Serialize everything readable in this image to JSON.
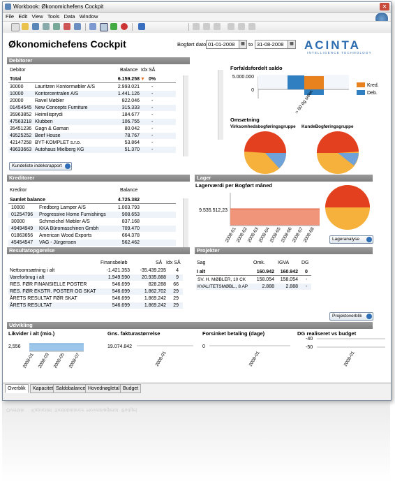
{
  "window": {
    "title": "Workbook: Økonomichefens Cockpit",
    "close_symbol": "✕"
  },
  "menu": [
    "File",
    "Edit",
    "View",
    "Tools",
    "Data",
    "Window"
  ],
  "page": {
    "title": "Økonomichefens Cockpit",
    "date_label": "Bogført dato",
    "date_from": "01-01-2008",
    "date_to_label": "to",
    "date_to": "31-08-2008",
    "brand": "ACINTA",
    "tagline": "INTELLIGENCE TECHNOLOGY",
    "calendar_symbol": "▦"
  },
  "debitorer": {
    "header": "Debitorer",
    "columns": [
      "Debitor",
      "Balance",
      "Idx",
      "SÅ"
    ],
    "total": {
      "label": "Total",
      "balance": "6.159.258",
      "arrow": "▼",
      "sa": "0%"
    },
    "rows": [
      {
        "no": "30000",
        "name": "Lauritzen Kontormøbler A/S",
        "bal": "2.993.021",
        "sa": "-"
      },
      {
        "no": "10000",
        "name": "Kontorcentralen A/S",
        "bal": "1.441.126",
        "sa": "-"
      },
      {
        "no": "20000",
        "name": "Ravel Møbler",
        "bal": "822.046",
        "sa": "-"
      },
      {
        "no": "01454545",
        "name": "New Concepts Furniture",
        "bal": "315.333",
        "sa": "-"
      },
      {
        "no": "35963852",
        "name": "Heimilisprydi",
        "bal": "184.677",
        "sa": "-"
      },
      {
        "no": "47563218",
        "name": "Klubben",
        "bal": "106.755",
        "sa": "-"
      },
      {
        "no": "35451236",
        "name": "Gagn & Gaman",
        "bal": "80.042",
        "sa": "-"
      },
      {
        "no": "49525252",
        "name": "Beef House",
        "bal": "78.767",
        "sa": "-"
      },
      {
        "no": "42147258",
        "name": "BYT-KOMPLET s.r.o.",
        "bal": "53.864",
        "sa": "-"
      },
      {
        "no": "49633663",
        "name": "Autohaus Mielberg KG",
        "bal": "51.370",
        "sa": "-"
      }
    ],
    "button": "Kundeliste indeksrapport"
  },
  "forfald": {
    "title": "Forfaldsfordelt saldo",
    "y_top": "5.000.000",
    "y_zero": "0",
    "x_label": "> 60 dg siden",
    "legend": [
      {
        "label": "Kred.",
        "color": "#e8821e"
      },
      {
        "label": "Deb.",
        "color": "#2f7fc1"
      }
    ]
  },
  "omsaetning": {
    "title": "Omsætning",
    "pie1_label": "Virksomhedsbogføringsgruppe",
    "pie2_label": "KundeBogføringsgruppe"
  },
  "kreditorer": {
    "header": "Kreditorer",
    "columns": [
      "Kreditor",
      "Balance"
    ],
    "total": {
      "label": "Samlet balance",
      "balance": "4.725.382"
    },
    "rows": [
      {
        "no": "10000",
        "name": "Fredborg Lamper A/S",
        "bal": "1.003.793"
      },
      {
        "no": "01254796",
        "name": "Progressive Home Furnishings",
        "bal": "908.653"
      },
      {
        "no": "30000",
        "name": "Schmeichel Møbler A/S",
        "bal": "837.168"
      },
      {
        "no": "49494949",
        "name": "KKA Büromaschinen Gmbh",
        "bal": "709.470"
      },
      {
        "no": "01863656",
        "name": "American Wood Exports",
        "bal": "664.378"
      },
      {
        "no": "45454547",
        "name": "VAG - Jürgensen",
        "bal": "562.462"
      }
    ]
  },
  "lager": {
    "header": "Lager",
    "title": "Lagerværdi per Bogført måned",
    "value": "9.535.512,23",
    "months": [
      "2008-01",
      "2008-02",
      "2008-03",
      "2008-04",
      "2008-05",
      "2008-06",
      "2008-07",
      "2008-08"
    ],
    "button": "Lageranalyse"
  },
  "resultat": {
    "header": "Resultatopgørelse",
    "columns": [
      "Finansbeløb",
      "SÅ",
      "Idx SÅ"
    ],
    "rows": [
      {
        "label": "Nettoomsætning i alt",
        "fin": "-1.421.353",
        "sa": "-35.439.235",
        "idx": "4"
      },
      {
        "label": "Vareforbrug i alt",
        "fin": "1.949.590",
        "sa": "20.935.888",
        "idx": "9"
      },
      {
        "label": "RES. FØR FINANSIELLE POSTER",
        "fin": "546.699",
        "sa": "828.288",
        "idx": "66"
      },
      {
        "label": "RES. FØR EKSTR. POSTER OG SKAT",
        "fin": "546.699",
        "sa": "1.862.702",
        "idx": "29"
      },
      {
        "label": "ÅRETS RESULTAT FØR SKAT",
        "fin": "546.699",
        "sa": "1.869.242",
        "idx": "29"
      },
      {
        "label": "ÅRETS RESULTAT",
        "fin": "546.699",
        "sa": "1.869.242",
        "idx": "29"
      }
    ]
  },
  "projekter": {
    "header": "Projekter",
    "columns": [
      "Sag",
      "Omk.",
      "IGVA",
      "DG"
    ],
    "total": {
      "label": "I alt",
      "omk": "160.942",
      "igva": "160.942",
      "dg": "0"
    },
    "rows": [
      {
        "label": "SV. H. MØBLER, 10 CK",
        "omk": "158.054",
        "igva": "158.054",
        "dg": "-"
      },
      {
        "label": "KVALITETSMØBL., 8 AP",
        "omk": "2.888",
        "igva": "2.888",
        "dg": "-"
      }
    ],
    "button": "Projektoverblik"
  },
  "udvikling": {
    "header": "Udvikling",
    "charts": [
      {
        "title": "Likvider i alt (mio.)",
        "value": "2,556",
        "months": [
          "2008-01",
          "2008-03",
          "2008-05",
          "2008-07"
        ]
      },
      {
        "title": "Gns. fakturastørrelse",
        "value": "19.074.842",
        "months": [
          "2008-01"
        ]
      },
      {
        "title": "Forsinket betaling (dage)",
        "value": "0",
        "months": [
          "2008-01"
        ]
      },
      {
        "title": "DG realiseret vs budget",
        "value_top": "-40",
        "value_bottom": "-50",
        "months": [
          "2008-01"
        ]
      }
    ]
  },
  "tabs": [
    "Overblik",
    "Kapacitet",
    "Saldobalance",
    "Hovednøgletal",
    "Budget"
  ]
}
